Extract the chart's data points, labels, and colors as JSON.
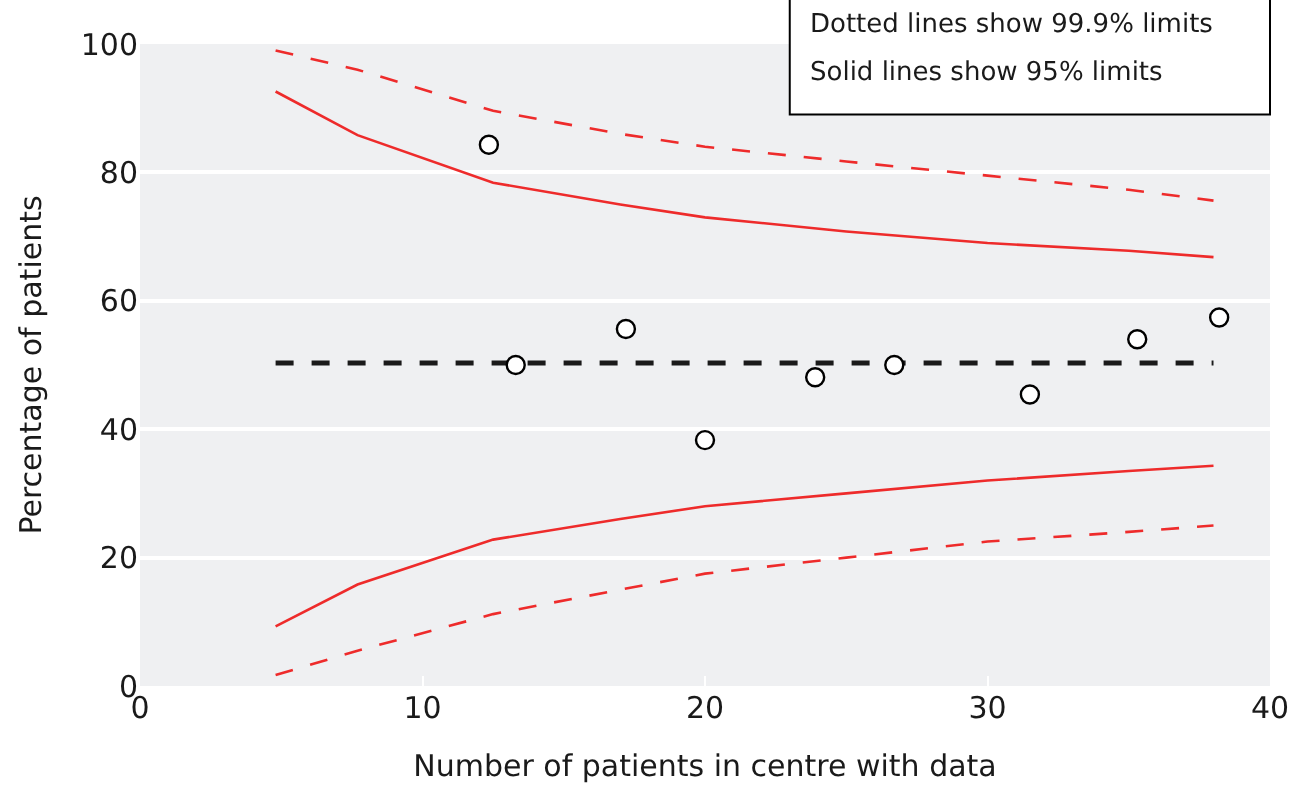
{
  "chart_data": {
    "type": "line",
    "xlabel": "Number of patients in centre with data",
    "ylabel": "Percentage of patients",
    "xlim": [
      0,
      40
    ],
    "xticks": [
      0,
      10,
      20,
      30,
      40
    ],
    "ylim": [
      0,
      100
    ],
    "yticks": [
      0,
      20,
      40,
      60,
      80,
      100
    ],
    "grid": "y",
    "annotations": [
      "Dotted lines show 99.9% limits",
      "Solid lines show 95% limits"
    ],
    "series": [
      {
        "color": "#ee2b2b",
        "line_style": "dashed",
        "marker": "none",
        "x": [
          4.8,
          7.7,
          12.5,
          17,
          20,
          25,
          30,
          35,
          38
        ],
        "values": [
          99,
          96,
          89.6,
          86,
          84,
          81.7,
          79.5,
          77.3,
          75.6
        ]
      },
      {
        "color": "#ee2b2b",
        "line_style": "solid",
        "marker": "none",
        "x": [
          4.8,
          7.7,
          12.5,
          17,
          20,
          25,
          30,
          35,
          38
        ],
        "values": [
          92.6,
          85.8,
          78.4,
          75,
          73,
          70.8,
          69,
          67.8,
          66.8
        ]
      },
      {
        "color": "#ee2b2b",
        "line_style": "solid",
        "marker": "none",
        "x": [
          4.8,
          7.7,
          12.5,
          17,
          20,
          25,
          30,
          35,
          38
        ],
        "values": [
          9.3,
          15.8,
          22.8,
          26,
          28,
          30,
          32,
          33.5,
          34.3
        ]
      },
      {
        "color": "#ee2b2b",
        "line_style": "dashed",
        "marker": "none",
        "x": [
          4.8,
          7.7,
          12.5,
          17,
          20,
          25,
          30,
          35,
          38
        ],
        "values": [
          1.7,
          5.5,
          11.2,
          15,
          17.5,
          20,
          22.5,
          24,
          25
        ]
      },
      {
        "color": "#1a1a1a",
        "line_style": "dashed",
        "marker": "none",
        "x": [
          4.8,
          38
        ],
        "values": [
          50.3,
          50.3
        ]
      },
      {
        "type": "scatter",
        "color": "#ffffff",
        "marker": "circle",
        "x": [
          12.35,
          13.3,
          17.2,
          20.0,
          23.9,
          26.7,
          31.5,
          35.3,
          38.2
        ],
        "values": [
          84.3,
          50,
          55.6,
          38.3,
          48.1,
          50,
          45.4,
          54,
          57.4
        ]
      }
    ]
  }
}
